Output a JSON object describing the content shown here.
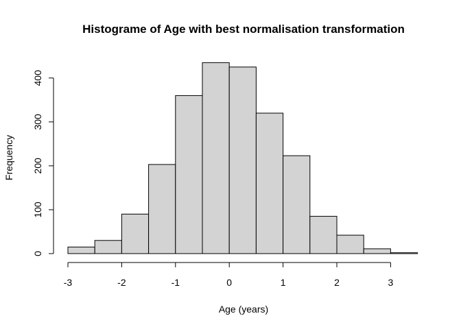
{
  "chart_data": {
    "type": "bar",
    "title": "Histograme of Age with best normalisation transformation",
    "xlabel": "Age (years)",
    "ylabel": "Frequency",
    "bin_edges": [
      -3,
      -2.5,
      -2,
      -1.5,
      -1,
      -0.5,
      0,
      0.5,
      1,
      1.5,
      2,
      2.5,
      3,
      3.5
    ],
    "values": [
      15,
      30,
      90,
      203,
      360,
      435,
      425,
      320,
      223,
      85,
      42,
      11,
      2
    ],
    "xlim": [
      -3,
      3.5
    ],
    "ylim": [
      0,
      440
    ],
    "x_ticks": [
      -3,
      -2,
      -1,
      0,
      1,
      2,
      3
    ],
    "x_tick_labels": [
      "-3",
      "-2",
      "-1",
      "0",
      "1",
      "2",
      "3"
    ],
    "y_ticks": [
      0,
      100,
      200,
      300,
      400
    ],
    "y_tick_labels": [
      "0",
      "100",
      "200",
      "300",
      "400"
    ],
    "bar_color": "#d3d3d3",
    "edge_color": "#000000",
    "grid": false
  }
}
